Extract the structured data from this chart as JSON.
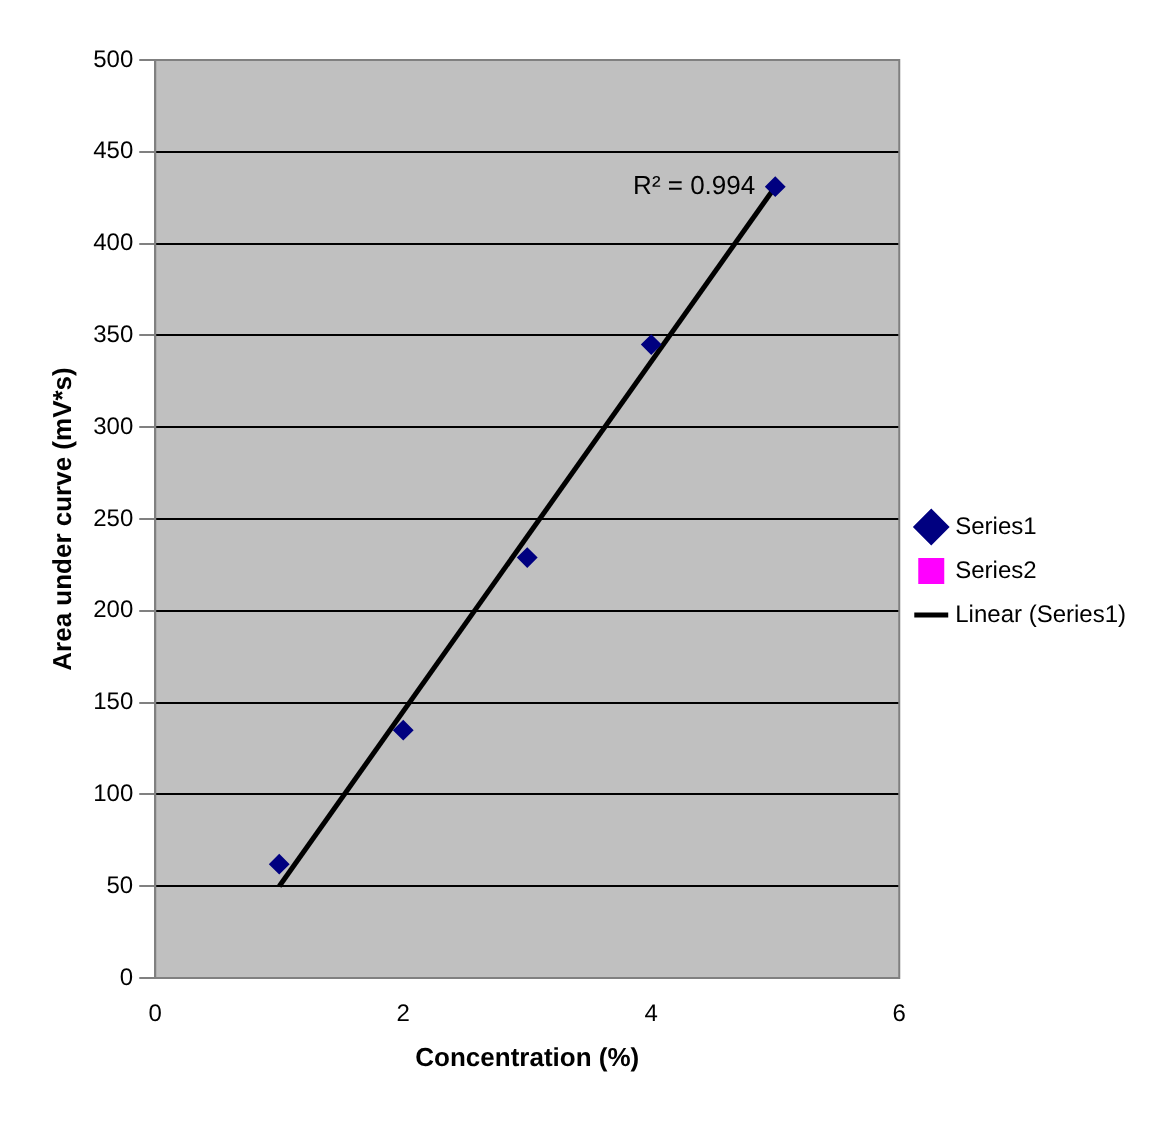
{
  "chart_data": {
    "type": "scatter",
    "xlabel": "Concentration (%)",
    "ylabel": "Area under curve (mV*s)",
    "series": [
      {
        "name": "Series1",
        "color": "#000080",
        "marker": "diamond",
        "x": [
          1,
          2,
          3,
          4,
          5
        ],
        "values": [
          62,
          135,
          229,
          345,
          431
        ]
      },
      {
        "name": "Series2",
        "color": "#ff00ff",
        "marker": "square"
      },
      {
        "name": "Linear (Series1)",
        "type": "line",
        "color": "#000000",
        "marker": "none",
        "x": [
          1,
          5
        ],
        "values": [
          50,
          431
        ]
      }
    ],
    "xlim": [
      0,
      6
    ],
    "xticks": [
      0,
      2,
      4,
      6
    ],
    "ylim": [
      0,
      500
    ],
    "yticks": [
      0,
      50,
      100,
      150,
      200,
      250,
      300,
      350,
      400,
      450,
      500
    ],
    "grid": "y",
    "legend": "right",
    "annotations": [
      {
        "text": "R² = 0.994",
        "x": 5,
        "y": 431
      }
    ]
  }
}
